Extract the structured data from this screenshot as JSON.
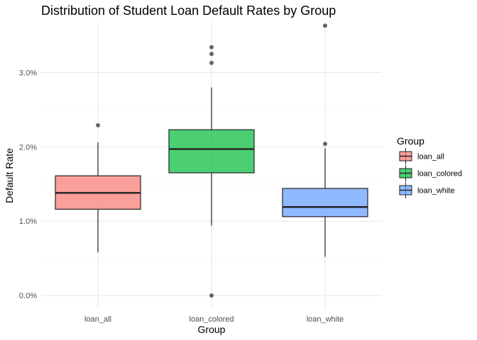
{
  "chart_data": {
    "type": "box",
    "title": "Distribution of Student Loan Default Rates by Group",
    "xlabel": "Group",
    "ylabel": "Default Rate",
    "categories": [
      "loan_all",
      "loan_colored",
      "loan_white"
    ],
    "ylim": [
      -0.0018,
      0.0368
    ],
    "yticks": [
      {
        "value": 0.0,
        "label": "0.0%"
      },
      {
        "value": 0.01,
        "label": "1.0%"
      },
      {
        "value": 0.02,
        "label": "2.0%"
      },
      {
        "value": 0.03,
        "label": "3.0%"
      }
    ],
    "grid": true,
    "legend": {
      "title": "Group",
      "position": "right",
      "entries": [
        "loan_all",
        "loan_colored",
        "loan_white"
      ]
    },
    "series": [
      {
        "category": "loan_all",
        "color": "#F8766D",
        "whisker_low": 0.0058,
        "q1": 0.0116,
        "median": 0.0138,
        "q3": 0.0161,
        "whisker_high": 0.0206,
        "outliers": [
          0.0229
        ]
      },
      {
        "category": "loan_colored",
        "color": "#00BA38",
        "whisker_low": 0.0094,
        "q1": 0.0165,
        "median": 0.0197,
        "q3": 0.0223,
        "whisker_high": 0.028,
        "outliers": [
          0.0,
          0.0313,
          0.0325,
          0.0334
        ]
      },
      {
        "category": "loan_white",
        "color": "#619CFF",
        "whisker_low": 0.0052,
        "q1": 0.0106,
        "median": 0.0119,
        "q3": 0.0144,
        "whisker_high": 0.0198,
        "outliers": [
          0.0204,
          0.0363
        ]
      }
    ]
  }
}
